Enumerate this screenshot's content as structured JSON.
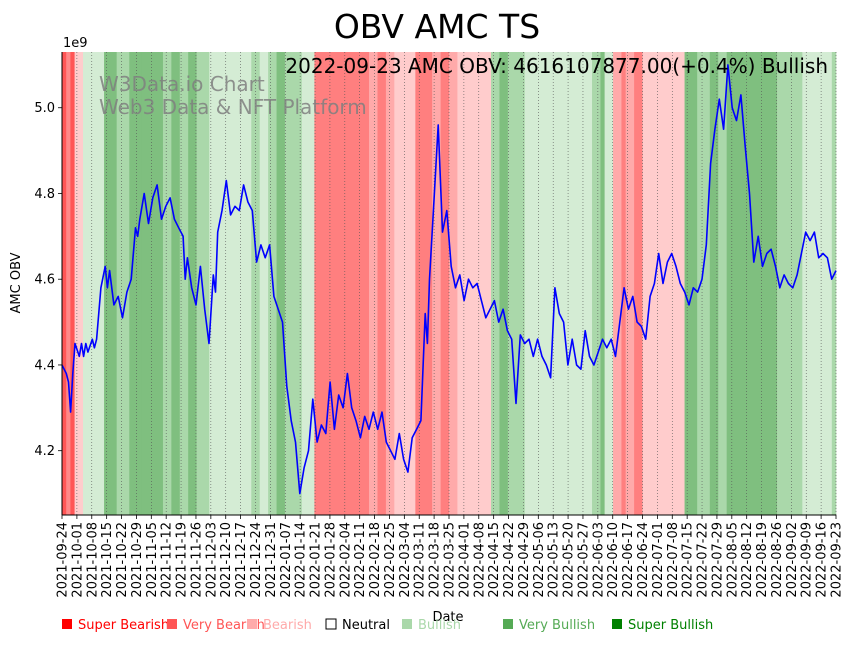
{
  "chart_data": {
    "type": "line",
    "title": "OBV AMC TS",
    "xlabel": "Date",
    "ylabel": "AMC OBV",
    "y_scale_label": "1e9",
    "annotation": "2022-09-23 AMC OBV: 4616107877.00(+0.4%) Bullish",
    "watermark": [
      "W3Data.io Chart",
      "Web3 Data & NFT Platform"
    ],
    "ylim": [
      4.05,
      5.13
    ],
    "yticks": [
      4.2,
      4.4,
      4.6,
      4.8,
      5.0
    ],
    "yticklabels": [
      "4.2",
      "4.4",
      "4.6",
      "4.8",
      "5.0"
    ],
    "xticks": [
      "2021-09-24",
      "2021-10-01",
      "2021-10-08",
      "2021-10-15",
      "2021-10-22",
      "2021-10-29",
      "2021-11-05",
      "2021-11-12",
      "2021-11-19",
      "2021-11-26",
      "2021-12-03",
      "2021-12-10",
      "2021-12-17",
      "2021-12-24",
      "2021-12-31",
      "2022-01-07",
      "2022-01-14",
      "2022-01-21",
      "2022-01-28",
      "2022-02-04",
      "2022-02-11",
      "2022-02-18",
      "2022-02-25",
      "2022-03-04",
      "2022-03-11",
      "2022-03-18",
      "2022-03-25",
      "2022-04-01",
      "2022-04-08",
      "2022-04-15",
      "2022-04-22",
      "2022-04-29",
      "2022-05-06",
      "2022-05-13",
      "2022-05-20",
      "2022-05-27",
      "2022-06-03",
      "2022-06-10",
      "2022-06-17",
      "2022-06-24",
      "2022-07-01",
      "2022-07-08",
      "2022-07-15",
      "2022-07-22",
      "2022-07-29",
      "2022-08-05",
      "2022-08-12",
      "2022-08-19",
      "2022-08-26",
      "2022-09-02",
      "2022-09-09",
      "2022-09-16",
      "2022-09-23"
    ],
    "series": [
      {
        "name": "AMC OBV",
        "color": "#0000ff",
        "points": [
          [
            0,
            4.4
          ],
          [
            1,
            4.38
          ],
          [
            1.5,
            4.36
          ],
          [
            2,
            4.29
          ],
          [
            2.5,
            4.38
          ],
          [
            3,
            4.45
          ],
          [
            4,
            4.42
          ],
          [
            4.5,
            4.45
          ],
          [
            5,
            4.42
          ],
          [
            5.5,
            4.45
          ],
          [
            6,
            4.43
          ],
          [
            7,
            4.46
          ],
          [
            7.5,
            4.44
          ],
          [
            8,
            4.46
          ],
          [
            9,
            4.58
          ],
          [
            10,
            4.63
          ],
          [
            10.5,
            4.58
          ],
          [
            11,
            4.62
          ],
          [
            12,
            4.54
          ],
          [
            13,
            4.56
          ],
          [
            14,
            4.51
          ],
          [
            15,
            4.57
          ],
          [
            16,
            4.6
          ],
          [
            17,
            4.72
          ],
          [
            17.5,
            4.7
          ],
          [
            18,
            4.74
          ],
          [
            19,
            4.8
          ],
          [
            20,
            4.73
          ],
          [
            21,
            4.79
          ],
          [
            22,
            4.82
          ],
          [
            23,
            4.74
          ],
          [
            24,
            4.77
          ],
          [
            25,
            4.79
          ],
          [
            26,
            4.74
          ],
          [
            27,
            4.72
          ],
          [
            28,
            4.7
          ],
          [
            28.5,
            4.6
          ],
          [
            29,
            4.65
          ],
          [
            30,
            4.58
          ],
          [
            31,
            4.54
          ],
          [
            32,
            4.63
          ],
          [
            33,
            4.53
          ],
          [
            34,
            4.45
          ],
          [
            35,
            4.61
          ],
          [
            35.5,
            4.57
          ],
          [
            36,
            4.71
          ],
          [
            37,
            4.76
          ],
          [
            38,
            4.83
          ],
          [
            39,
            4.75
          ],
          [
            40,
            4.77
          ],
          [
            41,
            4.76
          ],
          [
            42,
            4.82
          ],
          [
            43,
            4.78
          ],
          [
            44,
            4.76
          ],
          [
            45,
            4.64
          ],
          [
            46,
            4.68
          ],
          [
            47,
            4.65
          ],
          [
            48,
            4.68
          ],
          [
            49,
            4.56
          ],
          [
            50,
            4.53
          ],
          [
            51,
            4.5
          ],
          [
            52,
            4.35
          ],
          [
            53,
            4.27
          ],
          [
            54,
            4.22
          ],
          [
            55,
            4.1
          ],
          [
            56,
            4.16
          ],
          [
            57,
            4.2
          ],
          [
            58,
            4.32
          ],
          [
            59,
            4.22
          ],
          [
            60,
            4.26
          ],
          [
            61,
            4.24
          ],
          [
            62,
            4.36
          ],
          [
            63,
            4.25
          ],
          [
            64,
            4.33
          ],
          [
            65,
            4.3
          ],
          [
            66,
            4.38
          ],
          [
            67,
            4.3
          ],
          [
            68,
            4.27
          ],
          [
            69,
            4.23
          ],
          [
            70,
            4.28
          ],
          [
            71,
            4.25
          ],
          [
            72,
            4.29
          ],
          [
            73,
            4.25
          ],
          [
            74,
            4.29
          ],
          [
            75,
            4.22
          ],
          [
            76,
            4.2
          ],
          [
            77,
            4.18
          ],
          [
            78,
            4.24
          ],
          [
            79,
            4.18
          ],
          [
            80,
            4.15
          ],
          [
            81,
            4.23
          ],
          [
            82,
            4.25
          ],
          [
            83,
            4.27
          ],
          [
            84,
            4.52
          ],
          [
            84.5,
            4.45
          ],
          [
            85,
            4.6
          ],
          [
            86,
            4.78
          ],
          [
            87,
            4.96
          ],
          [
            88,
            4.71
          ],
          [
            89,
            4.76
          ],
          [
            90,
            4.63
          ],
          [
            91,
            4.58
          ],
          [
            92,
            4.61
          ],
          [
            93,
            4.55
          ],
          [
            94,
            4.6
          ],
          [
            95,
            4.58
          ],
          [
            96,
            4.59
          ],
          [
            97,
            4.55
          ],
          [
            98,
            4.51
          ],
          [
            99,
            4.53
          ],
          [
            100,
            4.55
          ],
          [
            101,
            4.5
          ],
          [
            102,
            4.53
          ],
          [
            103,
            4.48
          ],
          [
            104,
            4.46
          ],
          [
            105,
            4.31
          ],
          [
            106,
            4.47
          ],
          [
            107,
            4.45
          ],
          [
            108,
            4.46
          ],
          [
            109,
            4.42
          ],
          [
            110,
            4.46
          ],
          [
            111,
            4.42
          ],
          [
            112,
            4.4
          ],
          [
            113,
            4.37
          ],
          [
            114,
            4.58
          ],
          [
            115,
            4.52
          ],
          [
            116,
            4.5
          ],
          [
            117,
            4.4
          ],
          [
            118,
            4.46
          ],
          [
            119,
            4.4
          ],
          [
            120,
            4.39
          ],
          [
            121,
            4.48
          ],
          [
            122,
            4.42
          ],
          [
            123,
            4.4
          ],
          [
            124,
            4.43
          ],
          [
            125,
            4.46
          ],
          [
            126,
            4.44
          ],
          [
            127,
            4.46
          ],
          [
            128,
            4.42
          ],
          [
            129,
            4.5
          ],
          [
            130,
            4.58
          ],
          [
            131,
            4.53
          ],
          [
            132,
            4.56
          ],
          [
            133,
            4.5
          ],
          [
            134,
            4.49
          ],
          [
            135,
            4.46
          ],
          [
            136,
            4.56
          ],
          [
            137,
            4.59
          ],
          [
            138,
            4.66
          ],
          [
            139,
            4.59
          ],
          [
            140,
            4.64
          ],
          [
            141,
            4.66
          ],
          [
            142,
            4.63
          ],
          [
            143,
            4.59
          ],
          [
            144,
            4.57
          ],
          [
            145,
            4.54
          ],
          [
            146,
            4.58
          ],
          [
            147,
            4.57
          ],
          [
            148,
            4.6
          ],
          [
            149,
            4.68
          ],
          [
            150,
            4.87
          ],
          [
            151,
            4.95
          ],
          [
            152,
            5.02
          ],
          [
            153,
            4.95
          ],
          [
            154,
            5.1
          ],
          [
            155,
            5.0
          ],
          [
            156,
            4.97
          ],
          [
            157,
            5.03
          ],
          [
            158,
            4.91
          ],
          [
            159,
            4.8
          ],
          [
            160,
            4.64
          ],
          [
            161,
            4.7
          ],
          [
            162,
            4.63
          ],
          [
            163,
            4.66
          ],
          [
            164,
            4.67
          ],
          [
            165,
            4.63
          ],
          [
            166,
            4.58
          ],
          [
            167,
            4.61
          ],
          [
            168,
            4.59
          ],
          [
            169,
            4.58
          ],
          [
            170,
            4.61
          ],
          [
            171,
            4.66
          ],
          [
            172,
            4.71
          ],
          [
            173,
            4.69
          ],
          [
            174,
            4.71
          ],
          [
            175,
            4.65
          ],
          [
            176,
            4.66
          ],
          [
            177,
            4.65
          ],
          [
            178,
            4.6
          ],
          [
            179,
            4.62
          ]
        ]
      }
    ],
    "bands": [
      [
        0,
        1,
        "#ff5555"
      ],
      [
        1,
        2,
        "#ff8888"
      ],
      [
        2,
        3,
        "#ff5555"
      ],
      [
        3,
        5,
        "#ffcccc"
      ],
      [
        5,
        7,
        "#d4ecd4"
      ],
      [
        7,
        10,
        "#d4ecd4"
      ],
      [
        10,
        13,
        "#7fbf7f"
      ],
      [
        13,
        16,
        "#aad8aa"
      ],
      [
        16,
        19,
        "#7fbf7f"
      ],
      [
        19,
        24,
        "#7fbf7f"
      ],
      [
        24,
        26,
        "#aad8aa"
      ],
      [
        26,
        28,
        "#7fbf7f"
      ],
      [
        28,
        30,
        "#aad8aa"
      ],
      [
        30,
        32,
        "#7fbf7f"
      ],
      [
        32,
        35,
        "#aad8aa"
      ],
      [
        35,
        45,
        "#d4ecd4"
      ],
      [
        45,
        47,
        "#aad8aa"
      ],
      [
        47,
        49,
        "#d4ecd4"
      ],
      [
        49,
        51,
        "#aad8aa"
      ],
      [
        51,
        53,
        "#7fbf7f"
      ],
      [
        53,
        57,
        "#aad8aa"
      ],
      [
        57,
        60,
        "#d4ecd4"
      ],
      [
        60,
        73,
        "#ff7f7f"
      ],
      [
        73,
        75,
        "#ffaaaa"
      ],
      [
        75,
        77,
        "#ff7f7f"
      ],
      [
        77,
        79,
        "#ffaaaa"
      ],
      [
        79,
        82,
        "#ffcccc"
      ],
      [
        82,
        84,
        "#ffcccc"
      ],
      [
        84,
        88,
        "#ff7f7f"
      ],
      [
        88,
        90,
        "#ffaaaa"
      ],
      [
        90,
        92,
        "#ff7f7f"
      ],
      [
        92,
        94,
        "#ffaaaa"
      ],
      [
        94,
        97,
        "#ffcccc"
      ],
      [
        97,
        102,
        "#ffcccc"
      ],
      [
        102,
        104,
        "#aad8aa"
      ],
      [
        104,
        106,
        "#7fbf7f"
      ],
      [
        106,
        110,
        "#aad8aa"
      ],
      [
        110,
        126,
        "#d4ecd4"
      ],
      [
        126,
        128,
        "#aad8aa"
      ],
      [
        128,
        129,
        "#7fbf7f"
      ],
      [
        129,
        131,
        "#d4ecd4"
      ],
      [
        131,
        133,
        "#ffaaaa"
      ],
      [
        133,
        134,
        "#ff7f7f"
      ],
      [
        134,
        136,
        "#ffaaaa"
      ],
      [
        136,
        138,
        "#ff7f7f"
      ],
      [
        138,
        141,
        "#ffcccc"
      ],
      [
        141,
        148,
        "#ffcccc"
      ],
      [
        148,
        151,
        "#7fbf7f"
      ],
      [
        151,
        154,
        "#aad8aa"
      ],
      [
        154,
        156,
        "#7fbf7f"
      ],
      [
        156,
        158,
        "#aad8aa"
      ],
      [
        158,
        170,
        "#7fbf7f"
      ],
      [
        170,
        176,
        "#aad8aa"
      ],
      [
        176,
        183,
        "#d4ecd4"
      ],
      [
        183,
        184,
        "#aad8aa"
      ]
    ],
    "legend": [
      {
        "label": "Super Bearish",
        "color": "#ff0000"
      },
      {
        "label": "Very Bearish",
        "color": "#ff5555"
      },
      {
        "label": "Bearish",
        "color": "#ffaaaa"
      },
      {
        "label": "Neutral",
        "color": "#000000",
        "hollow": true
      },
      {
        "label": "Bullish",
        "color": "#aad8aa"
      },
      {
        "label": "Very Bullish",
        "color": "#55aa55"
      },
      {
        "label": "Super Bullish",
        "color": "#008000"
      }
    ]
  }
}
